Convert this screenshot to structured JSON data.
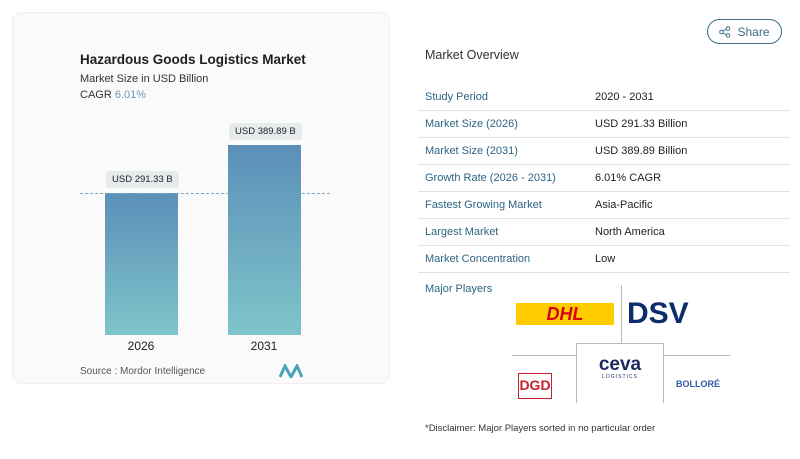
{
  "chart": {
    "title": "Hazardous Goods Logistics Market",
    "subtitle": "Market Size in USD Billion",
    "cagr_label": "CAGR",
    "cagr_value": "6.01%",
    "source": "Source :  Mordor Intelligence"
  },
  "chart_data": {
    "type": "bar",
    "categories": [
      "2026",
      "2031"
    ],
    "values": [
      291.33,
      389.89
    ],
    "data_labels": [
      "USD 291.33 B",
      "USD 389.89 B"
    ],
    "colors": {
      "bar_top": "#5b8fb9",
      "bar_bottom": "#7fc4c9"
    }
  },
  "share_label": "Share",
  "overview": {
    "title": "Market Overview",
    "rows": [
      {
        "k": "Study Period",
        "v": "2020 - 2031"
      },
      {
        "k": "Market Size (2026)",
        "v": "USD 291.33 Billion"
      },
      {
        "k": "Market Size (2031)",
        "v": "USD 389.89 Billion"
      },
      {
        "k": "Growth Rate (2026 - 2031)",
        "v": "6.01% CAGR"
      },
      {
        "k": "Fastest Growing Market",
        "v": "Asia-Pacific"
      },
      {
        "k": "Largest Market",
        "v": "North America"
      },
      {
        "k": "Market Concentration",
        "v": "Low"
      }
    ]
  },
  "players": {
    "title": "Major Players",
    "logos": [
      "DHL",
      "DSV",
      "DGD TRANSPORT",
      "CEVA LOGISTICS",
      "BOLLORÉ LOGISTICS"
    ]
  },
  "disclaimer": "*Disclaimer: Major Players sorted in no particular order"
}
